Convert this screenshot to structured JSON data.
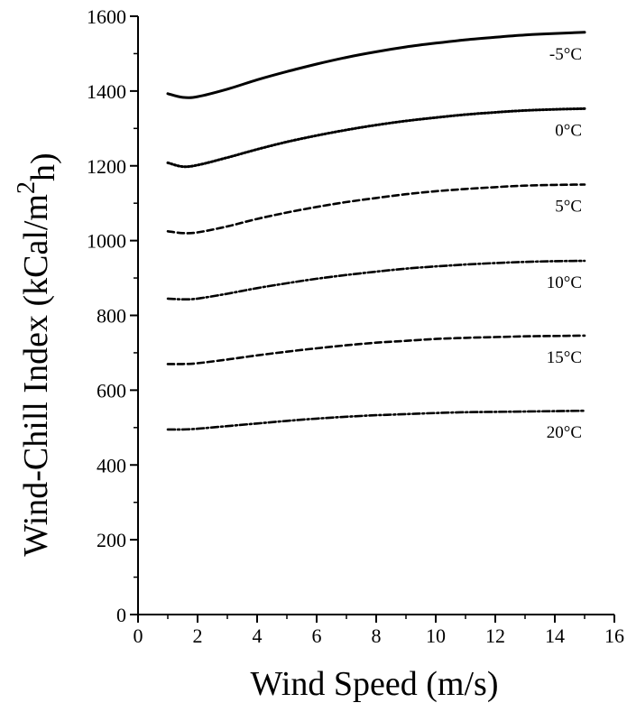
{
  "chart_data": {
    "type": "line",
    "title": "",
    "xlabel": "Wind Speed (m/s)",
    "ylabel_main": "Wind-Chill Index (kCal/m",
    "ylabel_sup": "2",
    "ylabel_sub": "h)",
    "xlim": [
      0,
      16
    ],
    "ylim": [
      0,
      1600
    ],
    "x_ticks": [
      0,
      2,
      4,
      6,
      8,
      10,
      12,
      14,
      16
    ],
    "y_ticks": [
      0,
      200,
      400,
      600,
      800,
      1000,
      1200,
      1400,
      1600
    ],
    "grid": false,
    "legend": "none",
    "x": [
      1,
      1.5,
      2,
      3,
      4,
      5,
      6,
      7,
      8,
      9,
      10,
      11,
      12,
      13,
      14,
      15
    ],
    "series": [
      {
        "name": "-5°C",
        "style": "solid",
        "values": [
          1393,
          1383,
          1385,
          1405,
          1430,
          1452,
          1472,
          1490,
          1505,
          1518,
          1528,
          1537,
          1544,
          1550,
          1554,
          1557
        ]
      },
      {
        "name": "0°C",
        "style": "dotted",
        "values": [
          1208,
          1198,
          1202,
          1222,
          1244,
          1264,
          1281,
          1296,
          1309,
          1320,
          1329,
          1337,
          1343,
          1348,
          1351,
          1353
        ]
      },
      {
        "name": "5°C",
        "style": "dashed",
        "values": [
          1025,
          1020,
          1022,
          1038,
          1058,
          1075,
          1090,
          1103,
          1114,
          1124,
          1132,
          1138,
          1143,
          1147,
          1149,
          1150
        ]
      },
      {
        "name": "10°C",
        "style": "dashdot",
        "values": [
          845,
          843,
          845,
          858,
          873,
          886,
          898,
          908,
          917,
          925,
          931,
          936,
          940,
          943,
          945,
          946
        ]
      },
      {
        "name": "15°C",
        "style": "dashed",
        "values": [
          670,
          670,
          672,
          682,
          693,
          703,
          712,
          720,
          727,
          732,
          737,
          740,
          742,
          744,
          745,
          746
        ]
      },
      {
        "name": "20°C",
        "style": "dashdot",
        "values": [
          495,
          495,
          497,
          504,
          511,
          518,
          524,
          529,
          533,
          536,
          539,
          541,
          542,
          543,
          544,
          545
        ]
      }
    ]
  }
}
